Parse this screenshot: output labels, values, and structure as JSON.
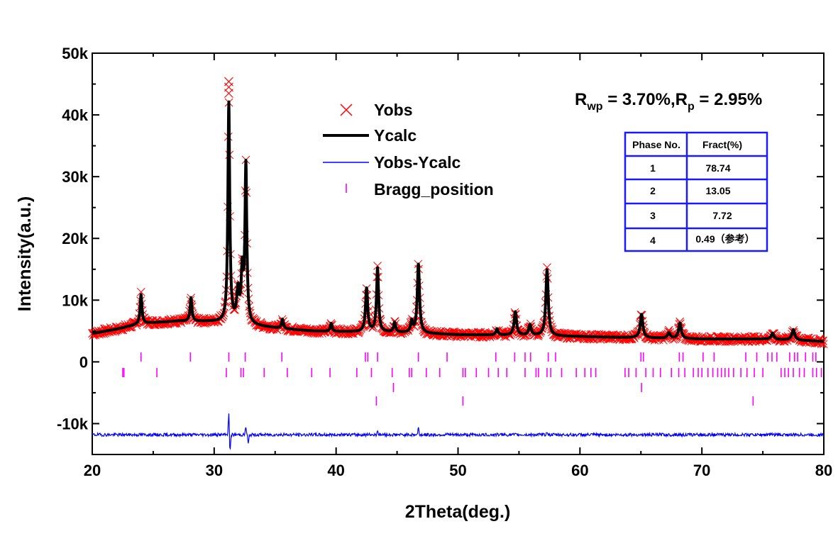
{
  "chart_data": {
    "type": "line",
    "xlabel": "2Theta(deg.)",
    "ylabel": "Intensity(a.u.)",
    "xlim": [
      20,
      80
    ],
    "ylim": [
      -15000,
      50000
    ],
    "x_ticks": [
      20,
      30,
      40,
      50,
      60,
      70,
      80
    ],
    "x_tick_labels": [
      "20",
      "30",
      "40",
      "50",
      "60",
      "70",
      "80"
    ],
    "y_ticks": [
      -10000,
      0,
      10000,
      20000,
      30000,
      40000,
      50000
    ],
    "y_tick_labels": [
      "-10k",
      "0",
      "10k",
      "20k",
      "30k",
      "40k",
      "50k"
    ],
    "grid": false,
    "legend_position": "top-center",
    "background_series": [
      [
        20,
        4600
      ],
      [
        22,
        5300
      ],
      [
        24,
        6200
      ],
      [
        27,
        6600
      ],
      [
        30,
        6500
      ],
      [
        32,
        6200
      ],
      [
        34,
        5700
      ],
      [
        36,
        5300
      ],
      [
        38,
        5000
      ],
      [
        40,
        4900
      ],
      [
        44,
        4800
      ],
      [
        46,
        4700
      ],
      [
        50,
        4400
      ],
      [
        55,
        4300
      ],
      [
        60,
        4100
      ],
      [
        65,
        3900
      ],
      [
        70,
        3700
      ],
      [
        75,
        3700
      ],
      [
        78,
        3500
      ],
      [
        80,
        3300
      ]
    ],
    "peaks": [
      {
        "x": 24.0,
        "h": 4700,
        "w": 0.09
      },
      {
        "x": 28.1,
        "h": 3800,
        "w": 0.09
      },
      {
        "x": 31.2,
        "h": 35500,
        "w": 0.09
      },
      {
        "x": 31.95,
        "h": 5000,
        "w": 0.12
      },
      {
        "x": 32.3,
        "h": 8000,
        "w": 0.1
      },
      {
        "x": 32.6,
        "h": 25500,
        "w": 0.09
      },
      {
        "x": 35.6,
        "h": 1500,
        "w": 0.09
      },
      {
        "x": 39.6,
        "h": 1300,
        "w": 0.09
      },
      {
        "x": 42.5,
        "h": 7000,
        "w": 0.11
      },
      {
        "x": 43.4,
        "h": 10300,
        "w": 0.1
      },
      {
        "x": 44.8,
        "h": 1600,
        "w": 0.1
      },
      {
        "x": 46.2,
        "h": 1800,
        "w": 0.1
      },
      {
        "x": 46.75,
        "h": 11200,
        "w": 0.11
      },
      {
        "x": 53.2,
        "h": 1000,
        "w": 0.1
      },
      {
        "x": 54.7,
        "h": 3800,
        "w": 0.12
      },
      {
        "x": 55.9,
        "h": 1700,
        "w": 0.12
      },
      {
        "x": 57.3,
        "h": 10700,
        "w": 0.12
      },
      {
        "x": 65.05,
        "h": 3800,
        "w": 0.13
      },
      {
        "x": 67.3,
        "h": 900,
        "w": 0.13
      },
      {
        "x": 68.2,
        "h": 2500,
        "w": 0.13
      },
      {
        "x": 75.8,
        "h": 1000,
        "w": 0.13
      },
      {
        "x": 77.5,
        "h": 1700,
        "w": 0.14
      }
    ],
    "diff_baseline": -11800,
    "diff_features": [
      {
        "x": 31.2,
        "h": 3500
      },
      {
        "x": 31.3,
        "h": -2800
      },
      {
        "x": 32.6,
        "h": 1200
      },
      {
        "x": 32.8,
        "h": -1500
      },
      {
        "x": 43.4,
        "h": 700
      },
      {
        "x": 46.75,
        "h": 1100
      },
      {
        "x": 57.3,
        "h": 600
      }
    ],
    "bragg_rows": [
      {
        "y_level": 0,
        "positions": [
          24.0,
          28.05,
          31.2,
          32.55,
          35.55,
          42.4,
          42.6,
          43.4,
          46.75,
          49.1,
          53.1,
          54.65,
          55.5,
          55.95,
          57.4,
          58.0,
          65.0,
          65.2,
          68.15,
          68.45,
          70.1,
          71.0,
          73.6,
          74.5,
          75.4,
          75.75,
          76.15,
          77.2,
          77.6,
          77.85,
          78.5,
          79.1,
          79.35
        ]
      },
      {
        "y_level": -1,
        "positions": [
          22.5,
          22.6,
          25.3,
          31.0,
          32.2,
          32.4,
          34.1,
          36.0,
          38.0,
          39.5,
          41.7,
          42.9,
          44.6,
          46.0,
          46.2,
          47.4,
          48.5,
          50.4,
          50.6,
          51.5,
          52.5,
          53.3,
          54.0,
          55.5,
          56.4,
          56.6,
          57.3,
          57.6,
          58.5,
          59.7,
          60.4,
          60.9,
          61.3,
          63.7,
          64.0,
          64.6,
          65.4,
          66.0,
          66.6,
          67.5,
          68.1,
          68.6,
          69.3,
          69.7,
          70.0,
          70.5,
          70.9,
          71.3,
          71.6,
          71.9,
          72.2,
          72.6,
          73.2,
          73.7,
          74.3,
          75.0,
          76.5,
          76.8,
          77.1,
          77.5,
          78.0,
          78.4,
          79.1,
          79.4,
          79.8
        ]
      },
      {
        "y_level": -2,
        "positions": [
          44.7,
          65.05
        ]
      },
      {
        "y_level": -3,
        "positions": [
          43.3,
          50.4,
          74.2
        ]
      }
    ],
    "series": [
      {
        "name": "Yobs",
        "type": "scatter",
        "marker": "x",
        "color": "#ff0000"
      },
      {
        "name": "Ycalc",
        "type": "line",
        "color": "#000000"
      },
      {
        "name": "Yobs-Ycalc",
        "type": "line",
        "color": "#0000ff"
      },
      {
        "name": "Bragg_position",
        "type": "tick",
        "color": "#ff00ff"
      }
    ],
    "annotation": {
      "R": "R",
      "wp": "wp",
      "eq1": " = 3.70%,",
      "Rp": "R",
      "p": "p",
      "eq2": " = 2.95%"
    },
    "table": {
      "headers": [
        "Phase No.",
        "Fract(%)"
      ],
      "rows": [
        [
          "1",
          "78.74"
        ],
        [
          "2",
          "13.05"
        ],
        [
          "3",
          "7.72"
        ],
        [
          "4",
          "0.49（参考）"
        ]
      ],
      "border_color": "#1a1aff"
    }
  }
}
